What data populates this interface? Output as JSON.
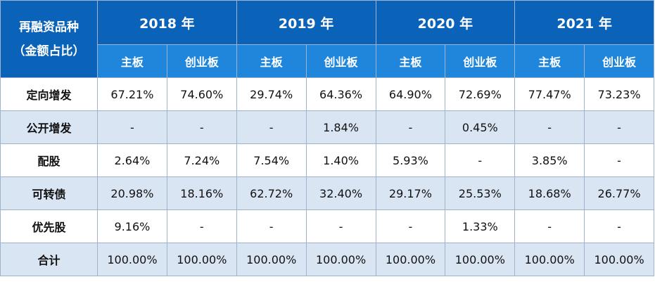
{
  "header": {
    "corner_line1": "再融资品种",
    "corner_line2": "（金额占比）",
    "years": [
      "2018 年",
      "2019 年",
      "2020 年",
      "2021 年"
    ],
    "boards": [
      "主板",
      "创业板"
    ]
  },
  "rows": [
    {
      "label": "定向增发",
      "values": [
        "67.21%",
        "74.60%",
        "29.74%",
        "64.36%",
        "64.90%",
        "72.69%",
        "77.47%",
        "73.23%"
      ]
    },
    {
      "label": "公开增发",
      "values": [
        "-",
        "-",
        "-",
        "1.84%",
        "-",
        "0.45%",
        "-",
        "-"
      ]
    },
    {
      "label": "配股",
      "values": [
        "2.64%",
        "7.24%",
        "7.54%",
        "1.40%",
        "5.93%",
        "-",
        "3.85%",
        "-"
      ]
    },
    {
      "label": "可转债",
      "values": [
        "20.98%",
        "18.16%",
        "62.72%",
        "32.40%",
        "29.17%",
        "25.53%",
        "18.68%",
        "26.77%"
      ]
    },
    {
      "label": "优先股",
      "values": [
        "9.16%",
        "-",
        "-",
        "-",
        "-",
        "1.33%",
        "-",
        "-"
      ]
    },
    {
      "label": "合计",
      "values": [
        "100.00%",
        "100.00%",
        "100.00%",
        "100.00%",
        "100.00%",
        "100.00%",
        "100.00%",
        "100.00%"
      ]
    }
  ],
  "colors": {
    "header_dark": "#0a63b8",
    "header_light": "#1f86dc",
    "row_alt": "#dae5f3"
  }
}
